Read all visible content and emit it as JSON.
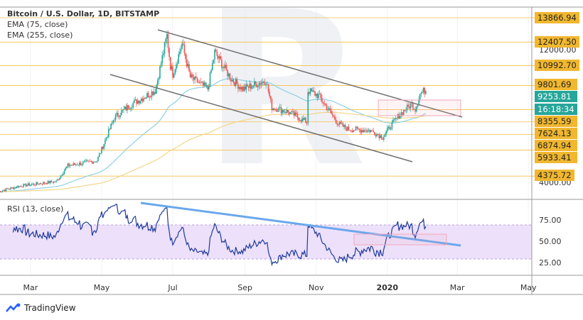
{
  "legend": {
    "title": "Bitcoin / U.S. Dollar, 1D, BITSTAMP",
    "ema75": "EMA (75, close)",
    "ema255": "EMA (255, close)",
    "rsi": "RSI (13, close)"
  },
  "branding": "TradingView",
  "colors": {
    "up": "#26a69a",
    "down": "#ef5350",
    "ema75": "#8fd0e6",
    "ema255": "#f5d58a",
    "level": "#f5c04a",
    "channel": "#707070",
    "rsi": "#1e3a9a",
    "rsi_trend": "#6aa7ec",
    "rsi_band": "#ede0fb",
    "zone": "#f2a7b8"
  },
  "chart_data": {
    "type": "candlestick",
    "title": "Bitcoin / U.S. Dollar, 1D, BITSTAMP",
    "x_unit": "days since 2019-02-01",
    "close_keypoints": [
      [
        0,
        3450
      ],
      [
        20,
        3800
      ],
      [
        50,
        4050
      ],
      [
        60,
        5000
      ],
      [
        85,
        5300
      ],
      [
        100,
        7900
      ],
      [
        115,
        8700
      ],
      [
        135,
        9500
      ],
      [
        145,
        12800
      ],
      [
        148,
        11000
      ],
      [
        150,
        10500
      ],
      [
        158,
        12300
      ],
      [
        165,
        10300
      ],
      [
        180,
        9600
      ],
      [
        186,
        11800
      ],
      [
        200,
        10200
      ],
      [
        210,
        9600
      ],
      [
        230,
        10100
      ],
      [
        235,
        8500
      ],
      [
        250,
        8200
      ],
      [
        265,
        7600
      ],
      [
        266,
        9500
      ],
      [
        275,
        9200
      ],
      [
        292,
        7500
      ],
      [
        300,
        7200
      ],
      [
        320,
        7100
      ],
      [
        330,
        6700
      ],
      [
        335,
        7200
      ],
      [
        345,
        8100
      ],
      [
        355,
        8700
      ],
      [
        358,
        8400
      ],
      [
        362,
        9300
      ],
      [
        367,
        9550
      ]
    ],
    "price_axis": {
      "ticks": [
        12000,
        4000
      ],
      "levels": [
        13866.94,
        12407.5,
        10992.7,
        9801.69,
        8355.59,
        7624.13,
        6874.94,
        5933.41,
        4375.72
      ]
    },
    "last_price": "9253.81",
    "countdown": "16:18:34",
    "price_labels": [
      "13866.94",
      "12407.50",
      "10992.70",
      "9801.69",
      "9253.81",
      "16:18:34",
      "8355.59",
      "7624.13",
      "6874.94",
      "5933.41",
      "4375.72"
    ],
    "price_ticks": [
      "12000.00",
      "4000.00"
    ],
    "rsi": {
      "period": 13,
      "ticks": [
        "75.00",
        "50.00",
        "25.00"
      ],
      "band": [
        30,
        70
      ]
    },
    "x_ticks": [
      {
        "label": "Mar",
        "day": 28
      },
      {
        "label": "May",
        "day": 89
      },
      {
        "label": "Jul",
        "day": 150
      },
      {
        "label": "Sep",
        "day": 212
      },
      {
        "label": "Nov",
        "day": 273
      },
      {
        "label": "2020",
        "day": 334,
        "bold": true
      },
      {
        "label": "Mar",
        "day": 394
      },
      {
        "label": "May",
        "day": 455
      }
    ]
  }
}
